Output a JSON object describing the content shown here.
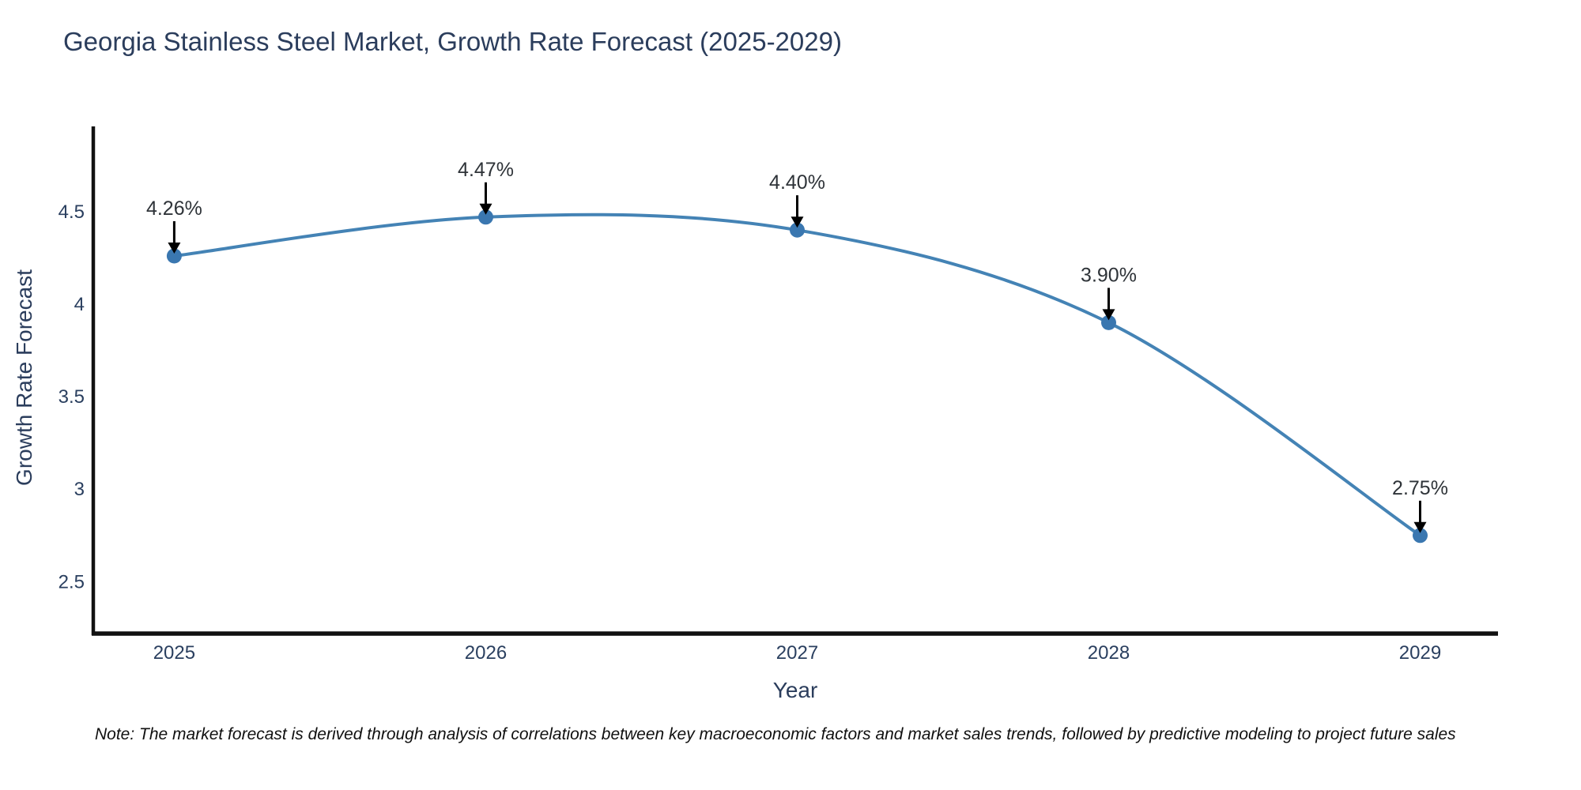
{
  "header": {
    "title": "Georgia Stainless Steel Market, Growth Rate Forecast (2025-2029)"
  },
  "footnote": {
    "text": "Note: The market forecast is derived through analysis of correlations between key macroeconomic factors and market sales trends, followed by predictive modeling to project future sales"
  },
  "chart_data": {
    "type": "line",
    "title": "Georgia Stainless Steel Market, Growth Rate Forecast (2025-2029)",
    "x": [
      2025,
      2026,
      2027,
      2028,
      2029
    ],
    "series": [
      {
        "name": "Growth Rate Forecast",
        "values": [
          4.26,
          4.47,
          4.4,
          3.9,
          2.75
        ]
      }
    ],
    "point_labels": [
      "4.26%",
      "4.47%",
      "4.40%",
      "3.90%",
      "2.75%"
    ],
    "xlabel": "Year",
    "ylabel": "Growth Rate Forecast",
    "x_tick_labels": [
      "2025",
      "2026",
      "2027",
      "2028",
      "2029"
    ],
    "y_tick_values": [
      2.5,
      3,
      3.5,
      4,
      4.5
    ],
    "y_tick_labels": [
      "2.5",
      "3",
      "3.5",
      "4",
      "4.5"
    ],
    "xlim": [
      2024.74,
      2029.25
    ],
    "ylim": [
      2.22,
      4.96
    ],
    "grid": false,
    "legend_position": "none",
    "line_shape": "spline",
    "annotation_style": "down-arrow-to-point",
    "colors": {
      "line": "#4483b5",
      "marker": "#3a77b0",
      "axis_line": "#111111",
      "tick_text": "#2a3f5f",
      "title_text": "#2b3d5c",
      "annotation_text": "#2e3338",
      "annotation_arrow": "#000000",
      "background": "#ffffff"
    }
  }
}
